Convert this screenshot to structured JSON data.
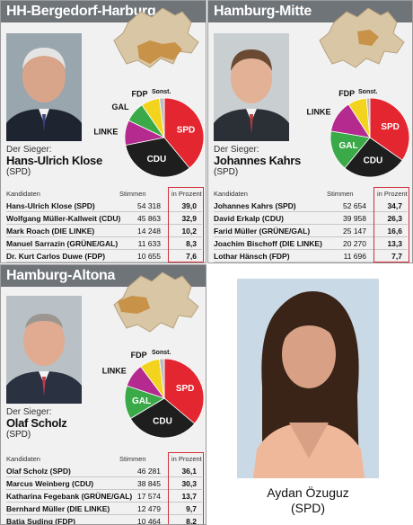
{
  "colors": {
    "SPD": "#e3262f",
    "CDU": "#1e1e1e",
    "LINKE": "#b42a8f",
    "GAL": "#3aaa48",
    "FDP": "#f2d41e",
    "Sonst": "#bdbdbd",
    "header": "#6f7479",
    "highlight": "#d0303a"
  },
  "caption": {
    "name": "Aydan Özuguz",
    "party": "(SPD)"
  },
  "panels": [
    {
      "title": "HH-Bergedorf-Harburg",
      "winner_label": "Der Sieger:",
      "winner_name": "Hans-Ulrich Klose",
      "winner_party": "(SPD)",
      "col_candidates": "Kandidaten",
      "col_votes": "Stimmen",
      "col_percent": "in Prozent",
      "rows": [
        {
          "name": "Hans-Ulrich Klose (SPD)",
          "votes": "54 318",
          "pct": "39,0"
        },
        {
          "name": "Wolfgang Müller-Kallweit (CDU)",
          "votes": "45 863",
          "pct": "32,9"
        },
        {
          "name": "Mark Roach (DIE LINKE)",
          "votes": "14 248",
          "pct": "10,2"
        },
        {
          "name": "Manuel Sarrazin (GRÜNE/GAL)",
          "votes": "11 633",
          "pct": "8,3"
        },
        {
          "name": "Dr. Kurt Carlos Duwe (FDP)",
          "votes": "10 655",
          "pct": "7,6"
        }
      ]
    },
    {
      "title": "Hamburg-Mitte",
      "winner_label": "Der Sieger:",
      "winner_name": "Johannes Kahrs",
      "winner_party": "(SPD)",
      "col_candidates": "Kandidaten",
      "col_votes": "Stimmen",
      "col_percent": "in Prozent",
      "rows": [
        {
          "name": "Johannes Kahrs (SPD)",
          "votes": "52 654",
          "pct": "34,7"
        },
        {
          "name": "David Erkalp (CDU)",
          "votes": "39 958",
          "pct": "26,3"
        },
        {
          "name": "Farid Müller (GRÜNE/GAL)",
          "votes": "25 147",
          "pct": "16,6"
        },
        {
          "name": "Joachim Bischoff (DIE LINKE)",
          "votes": "20 270",
          "pct": "13,3"
        },
        {
          "name": "Lothar Hänsch (FDP)",
          "votes": "11 696",
          "pct": "7,7"
        }
      ]
    },
    {
      "title": "Hamburg-Altona",
      "winner_label": "Der Sieger:",
      "winner_name": "Olaf Scholz",
      "winner_party": "(SPD)",
      "col_candidates": "Kandidaten",
      "col_votes": "Stimmen",
      "col_percent": "in Prozent",
      "rows": [
        {
          "name": "Olaf Scholz (SPD)",
          "votes": "46 281",
          "pct": "36,1"
        },
        {
          "name": "Marcus Weinberg (CDU)",
          "votes": "38 845",
          "pct": "30,3"
        },
        {
          "name": "Katharina Fegebank (GRÜNE/GAL)",
          "votes": "17 574",
          "pct": "13,7"
        },
        {
          "name": "Bernhard Müller (DIE LINKE)",
          "votes": "12 479",
          "pct": "9,7"
        },
        {
          "name": "Batja Suding (FDP)",
          "votes": "10 464",
          "pct": "8,2"
        }
      ]
    }
  ],
  "chart_data": [
    {
      "type": "pie",
      "title": "HH-Bergedorf-Harburg",
      "slices": [
        {
          "label": "SPD",
          "value": 39.0
        },
        {
          "label": "CDU",
          "value": 32.9
        },
        {
          "label": "LINKE",
          "value": 10.2
        },
        {
          "label": "GAL",
          "value": 8.3
        },
        {
          "label": "FDP",
          "value": 7.6
        },
        {
          "label": "Sonst.",
          "value": 2.0
        }
      ]
    },
    {
      "type": "pie",
      "title": "Hamburg-Mitte",
      "slices": [
        {
          "label": "SPD",
          "value": 34.7
        },
        {
          "label": "CDU",
          "value": 26.3
        },
        {
          "label": "GAL",
          "value": 16.6
        },
        {
          "label": "LINKE",
          "value": 13.3
        },
        {
          "label": "FDP",
          "value": 7.7
        },
        {
          "label": "Sonst.",
          "value": 1.4
        }
      ]
    },
    {
      "type": "pie",
      "title": "Hamburg-Altona",
      "slices": [
        {
          "label": "SPD",
          "value": 36.1
        },
        {
          "label": "CDU",
          "value": 30.3
        },
        {
          "label": "GAL",
          "value": 13.7
        },
        {
          "label": "LINKE",
          "value": 9.7
        },
        {
          "label": "FDP",
          "value": 8.2
        },
        {
          "label": "Sonst.",
          "value": 2.0
        }
      ]
    }
  ]
}
